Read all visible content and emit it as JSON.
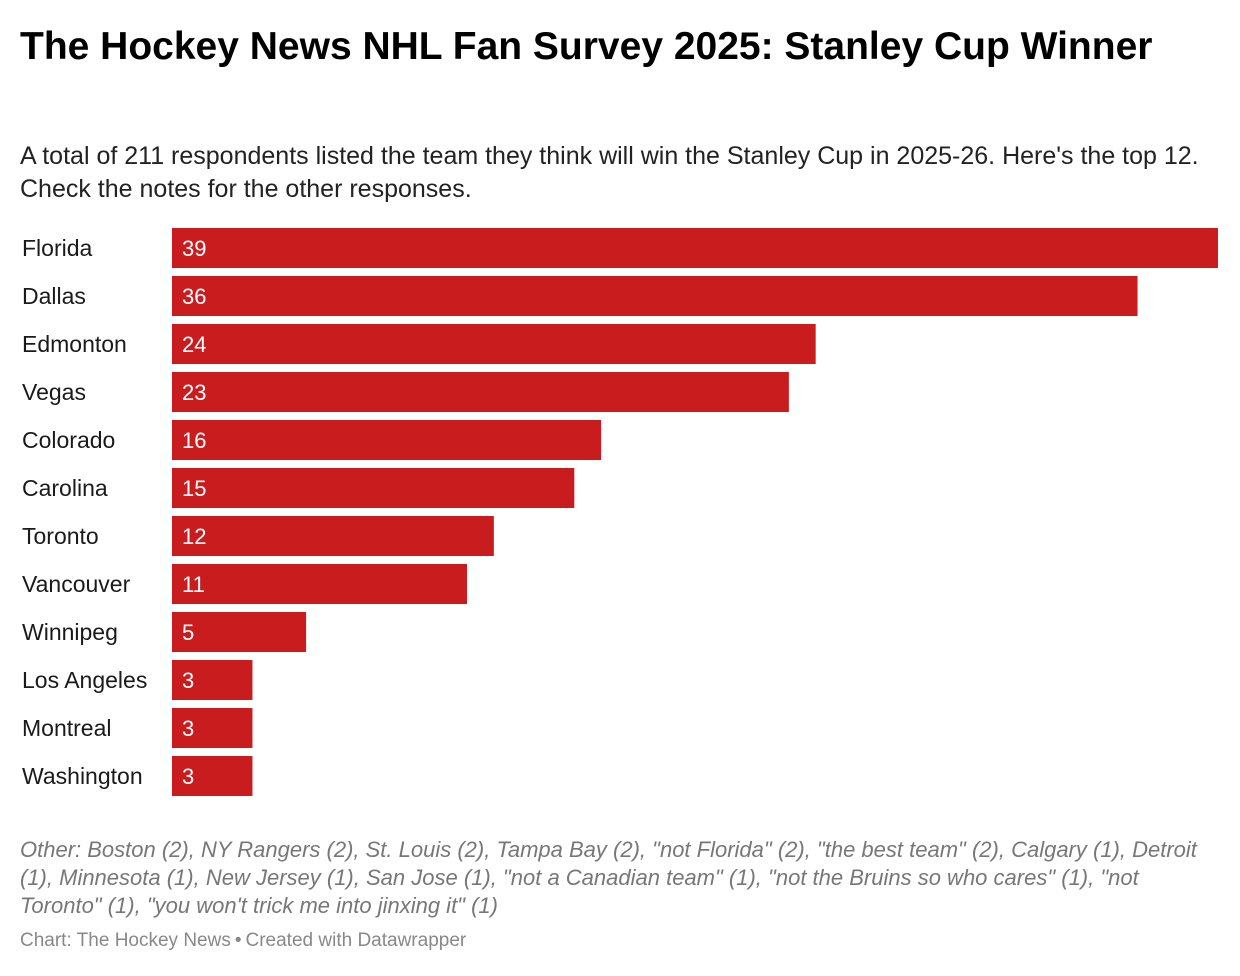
{
  "header": {
    "title": "The Hockey News NHL Fan Survey 2025: Stanley Cup Winner",
    "subtitle": "A total of 211 respondents listed the team they think will win the Stanley Cup in 2025-26. Here's the top 12. Check the notes for the other responses."
  },
  "chart_data": {
    "type": "bar",
    "orientation": "horizontal",
    "categories": [
      "Florida",
      "Dallas",
      "Edmonton",
      "Vegas",
      "Colorado",
      "Carolina",
      "Toronto",
      "Vancouver",
      "Winnipeg",
      "Los Angeles",
      "Montreal",
      "Washington"
    ],
    "values": [
      39,
      36,
      24,
      23,
      16,
      15,
      12,
      11,
      5,
      3,
      3,
      3
    ],
    "bar_color": "#c91c1f",
    "grid": false,
    "legend": "none",
    "data_labels": "inside-left"
  },
  "notes": "Other: Boston (2), NY Rangers (2), St. Louis (2), Tampa Bay (2), \"not Florida\" (2), \"the best team\" (2), Calgary (1), Detroit (1), Minnesota (1), New Jersey (1), San Jose (1), \"not a Canadian team\" (1), \"not the Bruins so who cares\" (1), \"not Toronto\" (1), \"you won't trick me into jinxing it\" (1)",
  "footer": {
    "source": "Chart: The Hockey News",
    "separator": "•",
    "credit": "Created with Datawrapper"
  }
}
